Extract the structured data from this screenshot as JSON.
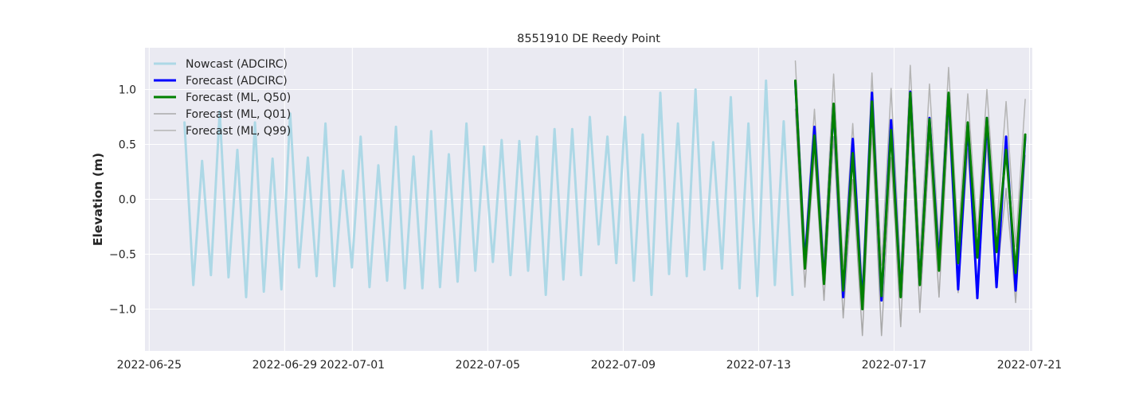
{
  "chart_data": {
    "type": "line",
    "title": "8551910 DE Reedy Point",
    "xlabel": "",
    "ylabel": "Elevation (m)",
    "x_ticks": [
      "2022-06-25",
      "2022-06-29",
      "2022-07-01",
      "2022-07-05",
      "2022-07-09",
      "2022-07-13",
      "2022-07-17",
      "2022-07-21"
    ],
    "y_ticks": [
      "−1.0",
      "−0.5",
      "0.0",
      "0.5",
      "1.0"
    ],
    "xlim": [
      "2022-06-24T21:00",
      "2022-07-21T02:00"
    ],
    "ylim": [
      -1.38,
      1.38
    ],
    "grid": true,
    "legend_position": "top-left",
    "series": [
      {
        "name": "Nowcast (ADCIRC)",
        "color": "#add8e6",
        "width": 3,
        "x_start": "2022-06-26T01:00",
        "x_end": "2022-07-14T00:00",
        "high_values": [
          0.7,
          0.35,
          0.8,
          0.45,
          0.7,
          0.37,
          0.78,
          0.38,
          0.69,
          0.26,
          0.57,
          0.31,
          0.66,
          0.39,
          0.62,
          0.41,
          0.69,
          0.48,
          0.54,
          0.53,
          0.57,
          0.64,
          0.64,
          0.75,
          0.57,
          0.75,
          0.59,
          0.97,
          0.69,
          1.0,
          0.52,
          0.93,
          0.69,
          1.08,
          0.71
        ],
        "low_values": [
          -0.78,
          -0.69,
          -0.71,
          -0.89,
          -0.84,
          -0.82,
          -0.62,
          -0.7,
          -0.79,
          -0.62,
          -0.8,
          -0.74,
          -0.81,
          -0.81,
          -0.8,
          -0.75,
          -0.65,
          -0.57,
          -0.69,
          -0.65,
          -0.87,
          -0.73,
          -0.69,
          -0.41,
          -0.58,
          -0.74,
          -0.87,
          -0.68,
          -0.7,
          -0.64,
          -0.63,
          -0.81,
          -0.88,
          -0.78,
          -0.87
        ]
      },
      {
        "name": "Forecast (ADCIRC)",
        "color": "#0000ff",
        "width": 3,
        "x_start": "2022-07-14T02:00",
        "x_end": "2022-07-20T21:00",
        "high_values": [
          1.07,
          0.66,
          0.86,
          0.55,
          0.97,
          0.72,
          0.98,
          0.74,
          0.96,
          0.69,
          0.74,
          0.57,
          0.57
        ],
        "low_values": [
          -0.58,
          -0.75,
          -0.89,
          -0.96,
          -0.92,
          -0.88,
          -0.77,
          -0.58,
          -0.82,
          -0.9,
          -0.8,
          -0.83
        ]
      },
      {
        "name": "Forecast (ML, Q50)",
        "color": "#008000",
        "width": 3,
        "x_start": "2022-07-14T02:00",
        "x_end": "2022-07-20T21:00",
        "high_values": [
          1.08,
          0.58,
          0.87,
          0.42,
          0.89,
          0.63,
          0.97,
          0.73,
          0.97,
          0.7,
          0.74,
          0.45,
          0.59
        ],
        "low_values": [
          -0.63,
          -0.77,
          -0.83,
          -1.0,
          -0.88,
          -0.89,
          -0.78,
          -0.65,
          -0.58,
          -0.53,
          -0.48,
          -0.67
        ]
      },
      {
        "name": "Forecast (ML, Q01)",
        "color": "#a9a9a9",
        "width": 1.5,
        "x_start": "2022-07-14T02:00",
        "x_end": "2022-07-20T21:00",
        "high_values": [
          0.82,
          0.41,
          0.57,
          0.18,
          0.62,
          0.38,
          0.73,
          0.5,
          0.73,
          0.46,
          0.52,
          0.1,
          0.4
        ],
        "low_values": [
          -0.8,
          -0.92,
          -1.08,
          -1.24,
          -1.24,
          -1.16,
          -1.03,
          -0.89,
          -0.85,
          -0.8,
          -0.75,
          -0.94
        ]
      },
      {
        "name": "Forecast (ML, Q99)",
        "color": "#b4b4b4",
        "width": 1.5,
        "x_start": "2022-07-14T02:00",
        "x_end": "2022-07-20T21:00",
        "high_values": [
          1.26,
          0.82,
          1.14,
          0.69,
          1.15,
          1.01,
          1.22,
          1.05,
          1.2,
          0.96,
          1.0,
          0.89,
          0.91
        ],
        "low_values": [
          -0.46,
          -0.55,
          -0.61,
          -0.8,
          -0.6,
          -0.65,
          -0.52,
          -0.4,
          -0.35,
          -0.32,
          -0.28,
          -0.43
        ]
      }
    ]
  }
}
